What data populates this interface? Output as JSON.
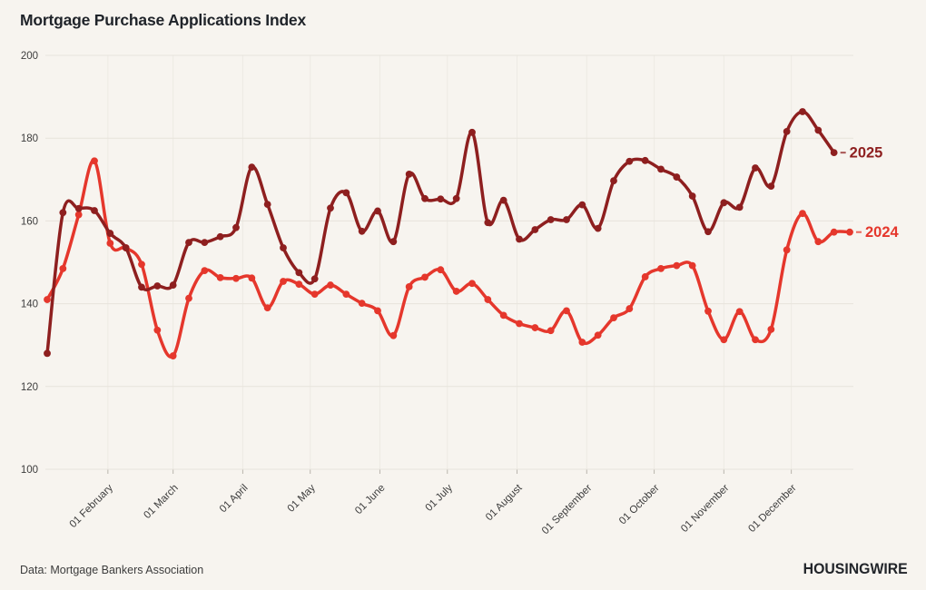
{
  "page": {
    "title": "Mortgage Purchase Applications Index",
    "source_note": "Data: Mortgage Bankers Association",
    "brand": "HOUSINGWIRE",
    "background_color": "#f7f4ef"
  },
  "chart_data": {
    "type": "line",
    "title": "Mortgage Purchase Applications Index",
    "xlabel": "",
    "ylabel": "",
    "ylim": [
      100,
      200
    ],
    "yticks": [
      100,
      120,
      140,
      160,
      180,
      200
    ],
    "grid": {
      "horizontal": true,
      "vertical_month_lines": true
    },
    "legend_position": "end-of-line-labels",
    "x_unit": "weekly observations, Jan through Dec",
    "x_start_day_of_year": 5,
    "x_interval_days": 7,
    "xticks": [
      {
        "label": "01 February",
        "day": 32
      },
      {
        "label": "01 March",
        "day": 61
      },
      {
        "label": "01 April",
        "day": 92
      },
      {
        "label": "01 May",
        "day": 122
      },
      {
        "label": "01 June",
        "day": 153
      },
      {
        "label": "01 July",
        "day": 183
      },
      {
        "label": "01 August",
        "day": 214
      },
      {
        "label": "01 September",
        "day": 245
      },
      {
        "label": "01 October",
        "day": 275
      },
      {
        "label": "01 November",
        "day": 306
      },
      {
        "label": "01 December",
        "day": 336
      }
    ],
    "series": [
      {
        "name": "2024",
        "color": "#e5372c",
        "values": [
          141,
          148.5,
          161.5,
          174.5,
          154.6,
          153.5,
          149.5,
          133.6,
          127.4,
          141.3,
          148,
          146.3,
          146.1,
          146.2,
          139,
          145.4,
          144.7,
          142.3,
          144.5,
          142.3,
          140.1,
          138.3,
          132.3,
          144.1,
          146.4,
          148.2,
          143,
          144.9,
          141,
          137.2,
          135.2,
          134.2,
          133.5,
          138.3,
          130.7,
          132.4,
          136.6,
          138.8,
          146.5,
          148.5,
          149.2,
          149.2,
          138.2,
          131.3,
          138.1,
          131.3,
          133.8,
          153,
          161.8,
          155,
          157.3,
          157.3
        ]
      },
      {
        "name": "2025",
        "color": "#8e1f1f",
        "values": [
          128,
          162,
          163,
          162.5,
          157,
          153.5,
          144,
          144.3,
          144.5,
          154.8,
          154.8,
          156.2,
          158.4,
          173,
          164,
          153.5,
          147.5,
          146,
          163.1,
          166.8,
          157.5,
          162.4,
          155,
          171.3,
          165.4,
          165.3,
          165.4,
          181.4,
          159.6,
          165,
          155.6,
          157.9,
          160.3,
          160.3,
          163.9,
          158.2,
          169.7,
          174.4,
          174.6,
          172.5,
          170.6,
          166,
          157.4,
          164.4,
          163.3,
          172.8,
          168.4,
          181.6,
          186.4,
          181.9,
          176.5
        ]
      }
    ]
  }
}
